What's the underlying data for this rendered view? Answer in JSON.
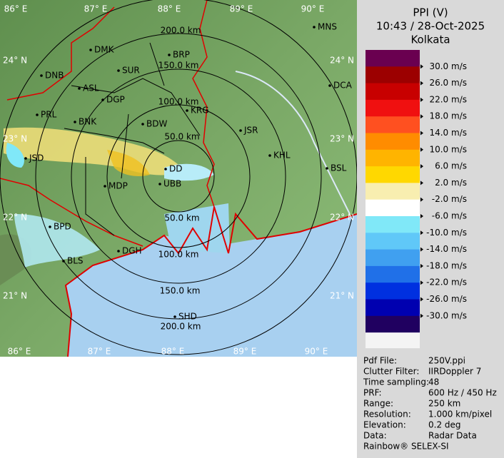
{
  "header": {
    "title": "PPI (V)",
    "time": "10:43 / 28-Oct-2025",
    "station": "Kolkata"
  },
  "colorbar": {
    "colors": [
      "#6a0050",
      "#9c0000",
      "#c80000",
      "#f01010",
      "#ff5020",
      "#ff8c00",
      "#ffb400",
      "#ffd800",
      "#f8eeb0",
      "#ffffff",
      "#80e8f8",
      "#60c8f8",
      "#40a0f0",
      "#2070e8",
      "#0030e0",
      "#0000b0",
      "#200060"
    ],
    "labels": [
      "30.0 m/s",
      "26.0 m/s",
      "22.0 m/s",
      "18.0 m/s",
      "14.0 m/s",
      "10.0 m/s",
      "6.0 m/s",
      "2.0 m/s",
      "-2.0 m/s",
      "-6.0 m/s",
      "-10.0 m/s",
      "-14.0 m/s",
      "-18.0 m/s",
      "-22.0 m/s",
      "-26.0 m/s",
      "-30.0 m/s"
    ]
  },
  "map": {
    "ring_labels": [
      "200.0 km",
      "150.0 km",
      "100.0 km",
      "50.0 km",
      "50.0 km",
      "100.0 km",
      "150.0 km",
      "200.0 km"
    ],
    "lon_labels_top": [
      "86° E",
      "87° E",
      "88° E",
      "89° E",
      "90° E"
    ],
    "lon_labels_bottom": [
      "86° E",
      "87° E",
      "88° E",
      "89° E",
      "90° E"
    ],
    "lat_labels_left": [
      "24° N",
      "23° N",
      "22° N",
      "21° N"
    ],
    "lat_labels_right": [
      "24° N",
      "23° N",
      "22° N",
      "21° N"
    ],
    "cities": [
      "MNS",
      "DMK",
      "BRP",
      "DNB",
      "SUR",
      "DCA",
      "ASL",
      "DGP",
      "KRG",
      "PRL",
      "BNK",
      "BDW",
      "JSR",
      "KHL",
      "JSD",
      "DD",
      "BSL",
      "MDP",
      "UBB",
      "BPD",
      "DGH",
      "BLS",
      "SHD"
    ]
  },
  "info": {
    "rows": [
      [
        "Pdf File:",
        "250V.ppi"
      ],
      [
        "Clutter Filter:",
        "IIRDoppler 7"
      ],
      [
        "Time sampling:",
        "48"
      ],
      [
        "PRF:",
        "600 Hz / 450 Hz"
      ],
      [
        "Range:",
        "250 km"
      ],
      [
        "Resolution:",
        "1.000 km/pixel"
      ],
      [
        "Elevation:",
        "0.2 deg"
      ],
      [
        "Data:",
        "Radar Data"
      ]
    ],
    "footer": "Rainbow® SELEX-SI"
  }
}
